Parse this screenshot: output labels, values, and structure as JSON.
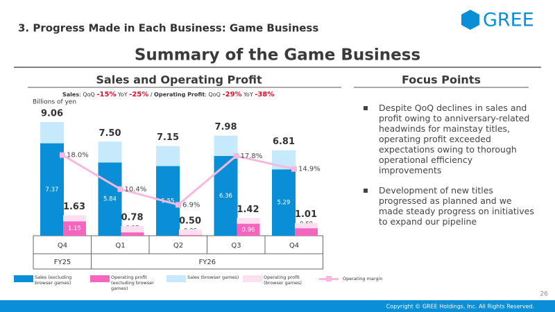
{
  "header": {
    "section": "3. Progress Made in Each Business: Game Business",
    "logo": "GREE",
    "title": "Summary of the Game Business"
  },
  "left_heading": "Sales and Operating Profit",
  "summary_parts": [
    "Sales",
    ": QoQ ",
    "-15%",
    " YoY ",
    "-25%",
    " / ",
    "Operating Profit",
    ": QoQ ",
    "-29%",
    " YoY ",
    "-38%"
  ],
  "chart_data": {
    "type": "bar",
    "y_axis_label": "Billions of yen",
    "categories": [
      "Q4",
      "Q1",
      "Q2",
      "Q3",
      "Q4"
    ],
    "category_groups": [
      "FY25",
      "FY26"
    ],
    "ylim": [
      0,
      10
    ],
    "y2lim": [
      0,
      28
    ],
    "series": [
      {
        "name": "Sales (excluding browser games)",
        "color": "#0a8fd6",
        "stack": "sales",
        "show_labels": true,
        "values": [
          7.37,
          5.84,
          5.55,
          6.36,
          5.29
        ]
      },
      {
        "name": "Operating profit (excluding browser games)",
        "color": "#f565c0",
        "stack": "profit",
        "show_labels": true,
        "values": [
          1.15,
          0.27,
          0.06,
          0.96,
          0.6
        ],
        "value_labels": [
          "1.15",
          "0.27",
          "0.06",
          "0.96",
          "0.60"
        ]
      },
      {
        "name": "Sales (browser games)",
        "color": "#c6eafb",
        "stack": "sales",
        "show_labels": false,
        "values": [
          1.69,
          1.66,
          1.6,
          1.62,
          1.52
        ]
      },
      {
        "name": "Operating profit (browser games)",
        "color": "#fde0f0",
        "stack": "profit",
        "show_labels": false,
        "values": [
          0.48,
          0.51,
          0.44,
          0.46,
          0.41
        ]
      },
      {
        "name": "Operating margin",
        "color": "#f7b8e0",
        "type": "line",
        "axis": "y2",
        "show_labels": true,
        "values": [
          18.0,
          10.4,
          6.9,
          17.8,
          14.9
        ],
        "value_labels": [
          "18.0%",
          "10.4%",
          "6.9%",
          "17.8%",
          "14.9%"
        ]
      }
    ],
    "sales_totals": [
      9.06,
      7.5,
      7.15,
      7.98,
      6.81
    ],
    "sales_total_labels": [
      "9.06",
      "7.50",
      "7.15",
      "7.98",
      "6.81"
    ],
    "profit_totals": [
      1.63,
      0.78,
      0.5,
      1.42,
      1.01
    ],
    "profit_total_labels": [
      "1.63",
      "0.78",
      "0.50",
      "1.42",
      "1.01"
    ]
  },
  "focus_heading": "Focus Points",
  "focus_points": [
    "Despite QoQ declines in sales and profit owing to anniversary-related headwinds for mainstay titles, operating profit exceeded expectations owing to thorough operational efficiency improvements",
    "Development of new titles progressed as planned and we made steady progress on initiatives to expand our pipeline"
  ],
  "page_number": "26",
  "copyright": "Copyright © GREE Holdings, Inc. All Rights Reserved."
}
